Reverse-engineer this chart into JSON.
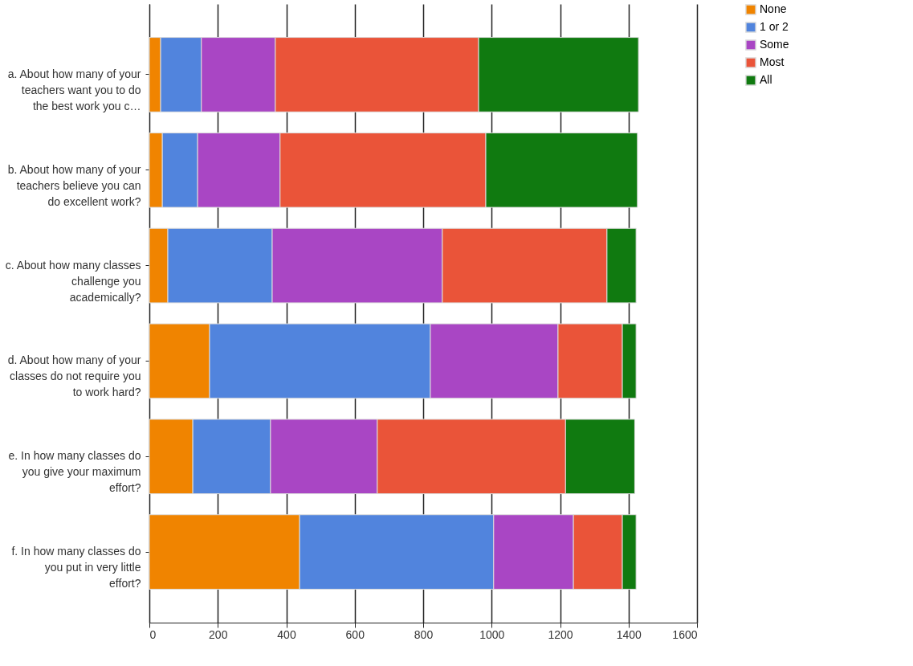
{
  "chart_data": {
    "type": "bar",
    "orientation": "horizontal",
    "stacked": true,
    "categories": [
      "a. About how many of your teachers want you to do the best work you c…",
      "b. About how many of your teachers believe you can do excellent work?",
      "c. About how many classes challenge you academically?",
      "d. About how many of your classes do not require you to work hard?",
      "e. In how many classes do you give your maximum effort?",
      "f. In how many classes do you put in very little effort?"
    ],
    "series": [
      {
        "name": "None",
        "color": "#f08400",
        "values": [
          33,
          38,
          54,
          176,
          127,
          439
        ]
      },
      {
        "name": "1 or 2",
        "color": "#5184dd",
        "values": [
          119,
          103,
          305,
          645,
          227,
          567
        ]
      },
      {
        "name": "Some",
        "color": "#a946c4",
        "values": [
          216,
          241,
          497,
          373,
          312,
          233
        ]
      },
      {
        "name": "Most",
        "color": "#ea5439",
        "values": [
          594,
          601,
          481,
          188,
          550,
          143
        ]
      },
      {
        "name": "All",
        "color": "#107a10",
        "values": [
          467,
          443,
          85,
          40,
          202,
          40
        ]
      }
    ],
    "xlim": [
      0,
      1600
    ],
    "xticks": [
      0,
      200,
      400,
      600,
      800,
      1000,
      1200,
      1400,
      1600
    ],
    "grid": "x",
    "legend": "right"
  }
}
